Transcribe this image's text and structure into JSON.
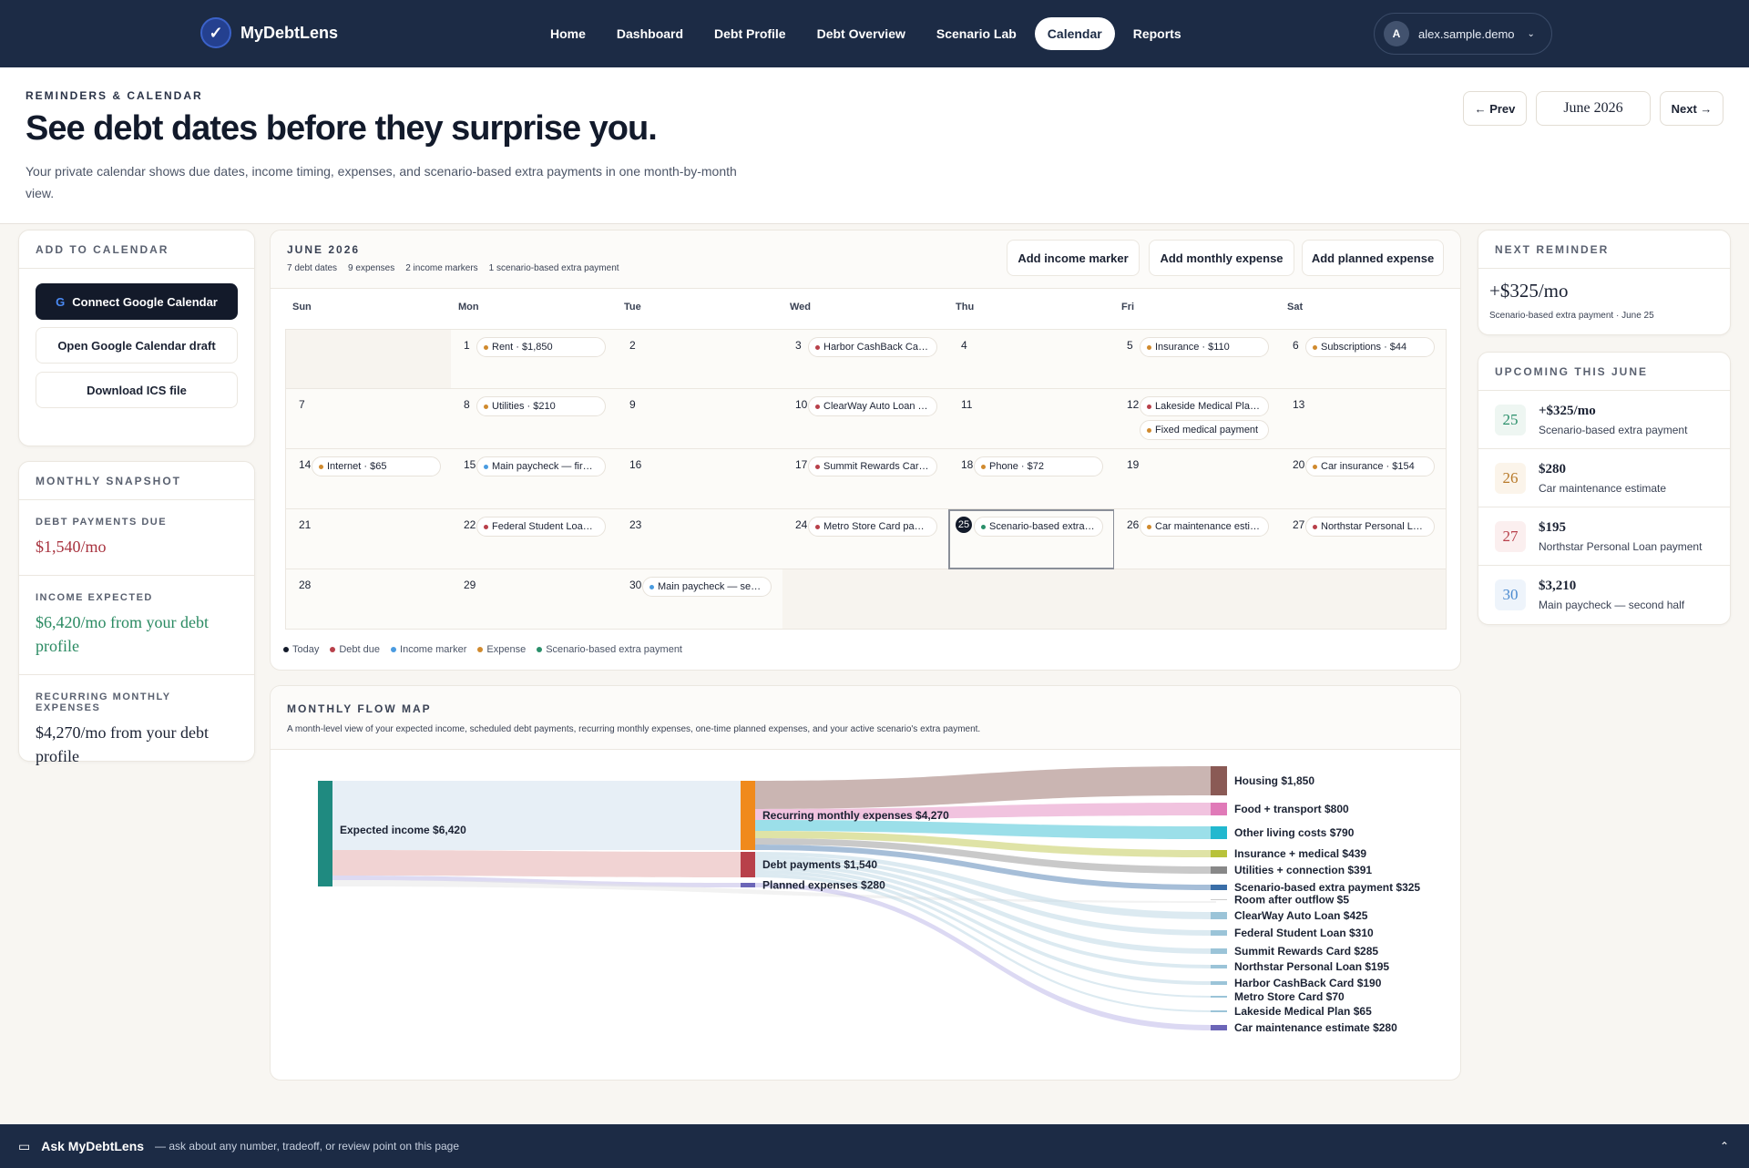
{
  "app": {
    "name": "MyDebtLens"
  },
  "nav": {
    "items": [
      "Home",
      "Dashboard",
      "Debt Profile",
      "Debt Overview",
      "Scenario Lab",
      "Calendar",
      "Reports"
    ],
    "active": "Calendar"
  },
  "user": {
    "initial": "A",
    "email": "alex.sample.demo"
  },
  "header": {
    "eyebrow": "REMINDERS & CALENDAR",
    "title": "See debt dates before they surprise you.",
    "subtitle": "Your private calendar shows due dates, income timing, expenses, and scenario-based extra payments in one month-by-month view.",
    "prev": "← Prev",
    "month": "June 2026",
    "next": "Next →"
  },
  "add_to_calendar": {
    "title": "ADD TO CALENDAR",
    "connect": "Connect Google Calendar",
    "draft": "Open Google Calendar draft",
    "ics": "Download ICS file"
  },
  "snapshot": {
    "title": "MONTHLY SNAPSHOT",
    "debt_label": "DEBT PAYMENTS DUE",
    "debt_value": "$1,540/mo",
    "income_label": "INCOME EXPECTED",
    "income_value": "$6,420/mo from your debt profile",
    "expenses_label": "RECURRING MONTHLY EXPENSES",
    "expenses_value": "$4,270/mo from your debt profile"
  },
  "calendar": {
    "month_label": "JUNE 2026",
    "stats": [
      "7 debt dates",
      "9 expenses",
      "2 income markers",
      "1 scenario-based extra payment"
    ],
    "actions": [
      "Add income marker",
      "Add monthly expense",
      "Add planned expense"
    ],
    "weekdays": [
      "Sun",
      "Mon",
      "Tue",
      "Wed",
      "Thu",
      "Fri",
      "Sat"
    ],
    "days": [
      {
        "day": "1",
        "col": 1,
        "row": 0,
        "events": [
          {
            "label": "Rent · $1,850",
            "kind": "expense"
          }
        ]
      },
      {
        "day": "2",
        "col": 2,
        "row": 0,
        "events": []
      },
      {
        "day": "3",
        "col": 3,
        "row": 0,
        "events": [
          {
            "label": "Harbor CashBack Card payment",
            "kind": "debt"
          }
        ]
      },
      {
        "day": "4",
        "col": 4,
        "row": 0,
        "events": []
      },
      {
        "day": "5",
        "col": 5,
        "row": 0,
        "events": [
          {
            "label": "Insurance · $110",
            "kind": "expense"
          }
        ]
      },
      {
        "day": "6",
        "col": 6,
        "row": 0,
        "events": [
          {
            "label": "Subscriptions · $44",
            "kind": "expense"
          }
        ]
      },
      {
        "day": "7",
        "col": 0,
        "row": 1,
        "events": []
      },
      {
        "day": "8",
        "col": 1,
        "row": 1,
        "events": [
          {
            "label": "Utilities · $210",
            "kind": "expense"
          }
        ]
      },
      {
        "day": "9",
        "col": 2,
        "row": 1,
        "events": []
      },
      {
        "day": "10",
        "col": 3,
        "row": 1,
        "events": [
          {
            "label": "ClearWay Auto Loan payment",
            "kind": "debt"
          }
        ]
      },
      {
        "day": "11",
        "col": 4,
        "row": 1,
        "events": []
      },
      {
        "day": "12",
        "col": 5,
        "row": 1,
        "events": [
          {
            "label": "Lakeside Medical Plan payment",
            "kind": "debt"
          },
          {
            "label": "Fixed medical payment",
            "kind": "expense"
          }
        ]
      },
      {
        "day": "13",
        "col": 6,
        "row": 1,
        "events": []
      },
      {
        "day": "14",
        "col": 0,
        "row": 2,
        "events": [
          {
            "label": "Internet · $65",
            "kind": "expense"
          }
        ]
      },
      {
        "day": "15",
        "col": 1,
        "row": 2,
        "events": [
          {
            "label": "Main paycheck — first half",
            "kind": "income"
          }
        ]
      },
      {
        "day": "16",
        "col": 2,
        "row": 2,
        "events": []
      },
      {
        "day": "17",
        "col": 3,
        "row": 2,
        "events": [
          {
            "label": "Summit Rewards Card payment",
            "kind": "debt"
          }
        ]
      },
      {
        "day": "18",
        "col": 4,
        "row": 2,
        "events": [
          {
            "label": "Phone · $72",
            "kind": "expense"
          }
        ]
      },
      {
        "day": "19",
        "col": 5,
        "row": 2,
        "events": []
      },
      {
        "day": "20",
        "col": 6,
        "row": 2,
        "events": [
          {
            "label": "Car insurance · $154",
            "kind": "expense"
          }
        ]
      },
      {
        "day": "21",
        "col": 0,
        "row": 3,
        "events": []
      },
      {
        "day": "22",
        "col": 1,
        "row": 3,
        "events": [
          {
            "label": "Federal Student Loan payment",
            "kind": "debt"
          }
        ]
      },
      {
        "day": "23",
        "col": 2,
        "row": 3,
        "events": []
      },
      {
        "day": "24",
        "col": 3,
        "row": 3,
        "events": [
          {
            "label": "Metro Store Card payment",
            "kind": "debt"
          }
        ]
      },
      {
        "day": "25",
        "col": 4,
        "row": 3,
        "today": true,
        "events": [
          {
            "label": "Scenario-based extra payment",
            "kind": "scenario"
          }
        ]
      },
      {
        "day": "26",
        "col": 5,
        "row": 3,
        "events": [
          {
            "label": "Car maintenance estimate",
            "kind": "expense"
          }
        ]
      },
      {
        "day": "27",
        "col": 6,
        "row": 3,
        "events": [
          {
            "label": "Northstar Personal Loan payment",
            "kind": "debt"
          }
        ]
      },
      {
        "day": "28",
        "col": 0,
        "row": 4,
        "events": []
      },
      {
        "day": "29",
        "col": 1,
        "row": 4,
        "events": []
      },
      {
        "day": "30",
        "col": 2,
        "row": 4,
        "events": [
          {
            "label": "Main paycheck — second half",
            "kind": "income"
          }
        ]
      }
    ],
    "legend": [
      {
        "label": "Today",
        "color": "#131a2a"
      },
      {
        "label": "Debt due",
        "color": "#b8404a"
      },
      {
        "label": "Income marker",
        "color": "#4a9be0"
      },
      {
        "label": "Expense",
        "color": "#d08a2e"
      },
      {
        "label": "Scenario-based extra payment",
        "color": "#2a8f6a"
      }
    ],
    "kind_colors": {
      "debt": "#b8404a",
      "income": "#4a9be0",
      "expense": "#d08a2e",
      "scenario": "#2a8f6a"
    }
  },
  "next_reminder": {
    "title": "NEXT REMINDER",
    "amount": "+$325/mo",
    "desc": "Scenario-based extra payment · June 25"
  },
  "upcoming": {
    "title": "UPCOMING THIS JUNE",
    "items": [
      {
        "date": "25",
        "amount": "+$325/mo",
        "desc": "Scenario-based extra payment",
        "color": "#2a8f6a",
        "bg": "#eef6f2"
      },
      {
        "date": "26",
        "amount": "$280",
        "desc": "Car maintenance estimate",
        "color": "#b87a2a",
        "bg": "#fbf4ea"
      },
      {
        "date": "27",
        "amount": "$195",
        "desc": "Northstar Personal Loan payment",
        "color": "#b8404a",
        "bg": "#fbefef"
      },
      {
        "date": "30",
        "amount": "$3,210",
        "desc": "Main paycheck — second half",
        "color": "#4a8ad0",
        "bg": "#eef4fb"
      }
    ]
  },
  "flow_map": {
    "title": "MONTHLY FLOW MAP",
    "subtitle": "A month-level view of your expected income, scheduled debt payments, recurring monthly expenses, one-time planned expenses, and your active scenario's extra payment.",
    "source": {
      "label": "Expected income  $6,420",
      "color": "#1f8a80"
    },
    "middle": [
      {
        "label": "Recurring monthly expenses  $4,270",
        "color": "#f08a1c"
      },
      {
        "label": "Debt payments  $1,540",
        "color": "#b8404a"
      },
      {
        "label": "Planned expenses  $280",
        "color": "#6c66b8"
      }
    ],
    "targets": [
      {
        "label": "Housing  $1,850",
        "color": "#8a5a55"
      },
      {
        "label": "Food + transport  $800",
        "color": "#e07ab8"
      },
      {
        "label": "Other living costs  $790",
        "color": "#22b8cf"
      },
      {
        "label": "Insurance + medical  $439",
        "color": "#b8c23a"
      },
      {
        "label": "Utilities + connection  $391",
        "color": "#888888"
      },
      {
        "label": "Scenario-based extra payment  $325",
        "color": "#3a6ea8"
      },
      {
        "label": "Room after outflow  $5",
        "color": "#cccccc"
      },
      {
        "label": "ClearWay Auto Loan  $425",
        "color": "#9bc4d8"
      },
      {
        "label": "Federal Student Loan  $310",
        "color": "#9bc4d8"
      },
      {
        "label": "Summit Rewards Card  $285",
        "color": "#9bc4d8"
      },
      {
        "label": "Northstar Personal Loan  $195",
        "color": "#9bc4d8"
      },
      {
        "label": "Harbor CashBack Card  $190",
        "color": "#9bc4d8"
      },
      {
        "label": "Metro Store Card  $70",
        "color": "#9bc4d8"
      },
      {
        "label": "Lakeside Medical Plan  $65",
        "color": "#9bc4d8"
      },
      {
        "label": "Car maintenance estimate  $280",
        "color": "#6c66b8"
      }
    ]
  },
  "assistant": {
    "title": "Ask MyDebtLens",
    "hint": "— ask about any number, tradeoff, or review point on this page"
  }
}
